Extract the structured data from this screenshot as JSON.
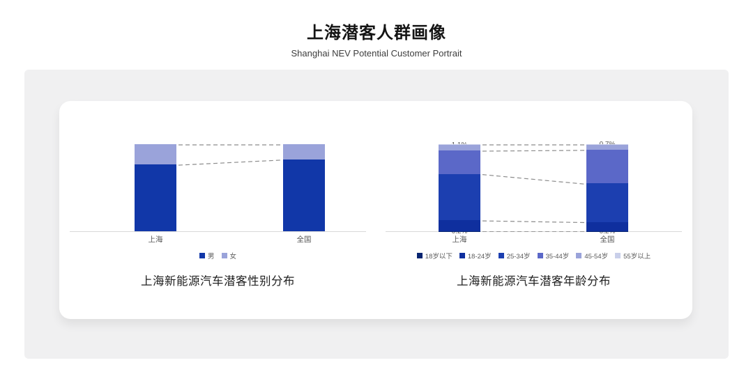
{
  "header": {
    "title": "上海潜客人群画像",
    "subtitle": "Shanghai NEV Potential Customer Portrait"
  },
  "colors": {
    "panel_bg": "#f0f0f1",
    "card_bg": "#ffffff",
    "axis": "#d9d9d9",
    "connector": "#8c8c8c",
    "label_dark": "#595959",
    "label_light": "#ffffff"
  },
  "chart_data": [
    {
      "type": "bar",
      "subtype": "stacked-percent-column",
      "title": "上海新能源汽车潜客性别分布",
      "categories": [
        "上海",
        "全国"
      ],
      "series": [
        {
          "name": "男",
          "color": "#1137a8",
          "values": [
            76.7,
            82.5
          ]
        },
        {
          "name": "女",
          "color": "#9aa3da",
          "values": [
            23.3,
            17.5
          ]
        }
      ],
      "ylim": [
        0,
        100
      ],
      "unit": "%",
      "grid": false,
      "legend_position": "bottom",
      "annotations": "dashed connector lines join segment boundaries between the two columns"
    },
    {
      "type": "bar",
      "subtype": "stacked-percent-column",
      "title": "上海新能源汽车潜客年龄分布",
      "categories": [
        "上海",
        "全国"
      ],
      "series": [
        {
          "name": "18岁以下",
          "color": "#082571",
          "values": [
            0.2,
            0.2
          ]
        },
        {
          "name": "18-24岁",
          "color": "#0f2f9e",
          "values": [
            12.5,
            10.6
          ]
        },
        {
          "name": "25-34岁",
          "color": "#1c3fb0",
          "values": [
            53.2,
            44.2
          ]
        },
        {
          "name": "35-44岁",
          "color": "#5b68c8",
          "values": [
            26.9,
            38.7
          ]
        },
        {
          "name": "45-54岁",
          "color": "#9aa3da",
          "values": [
            6.1,
            5.6
          ]
        },
        {
          "name": "55岁以上",
          "color": "#c9cfea",
          "values": [
            1.1,
            0.7
          ]
        }
      ],
      "ylim": [
        0,
        100
      ],
      "unit": "%",
      "grid": false,
      "legend_position": "bottom",
      "annotations": "dashed connector lines join segment boundaries between the two columns"
    }
  ]
}
